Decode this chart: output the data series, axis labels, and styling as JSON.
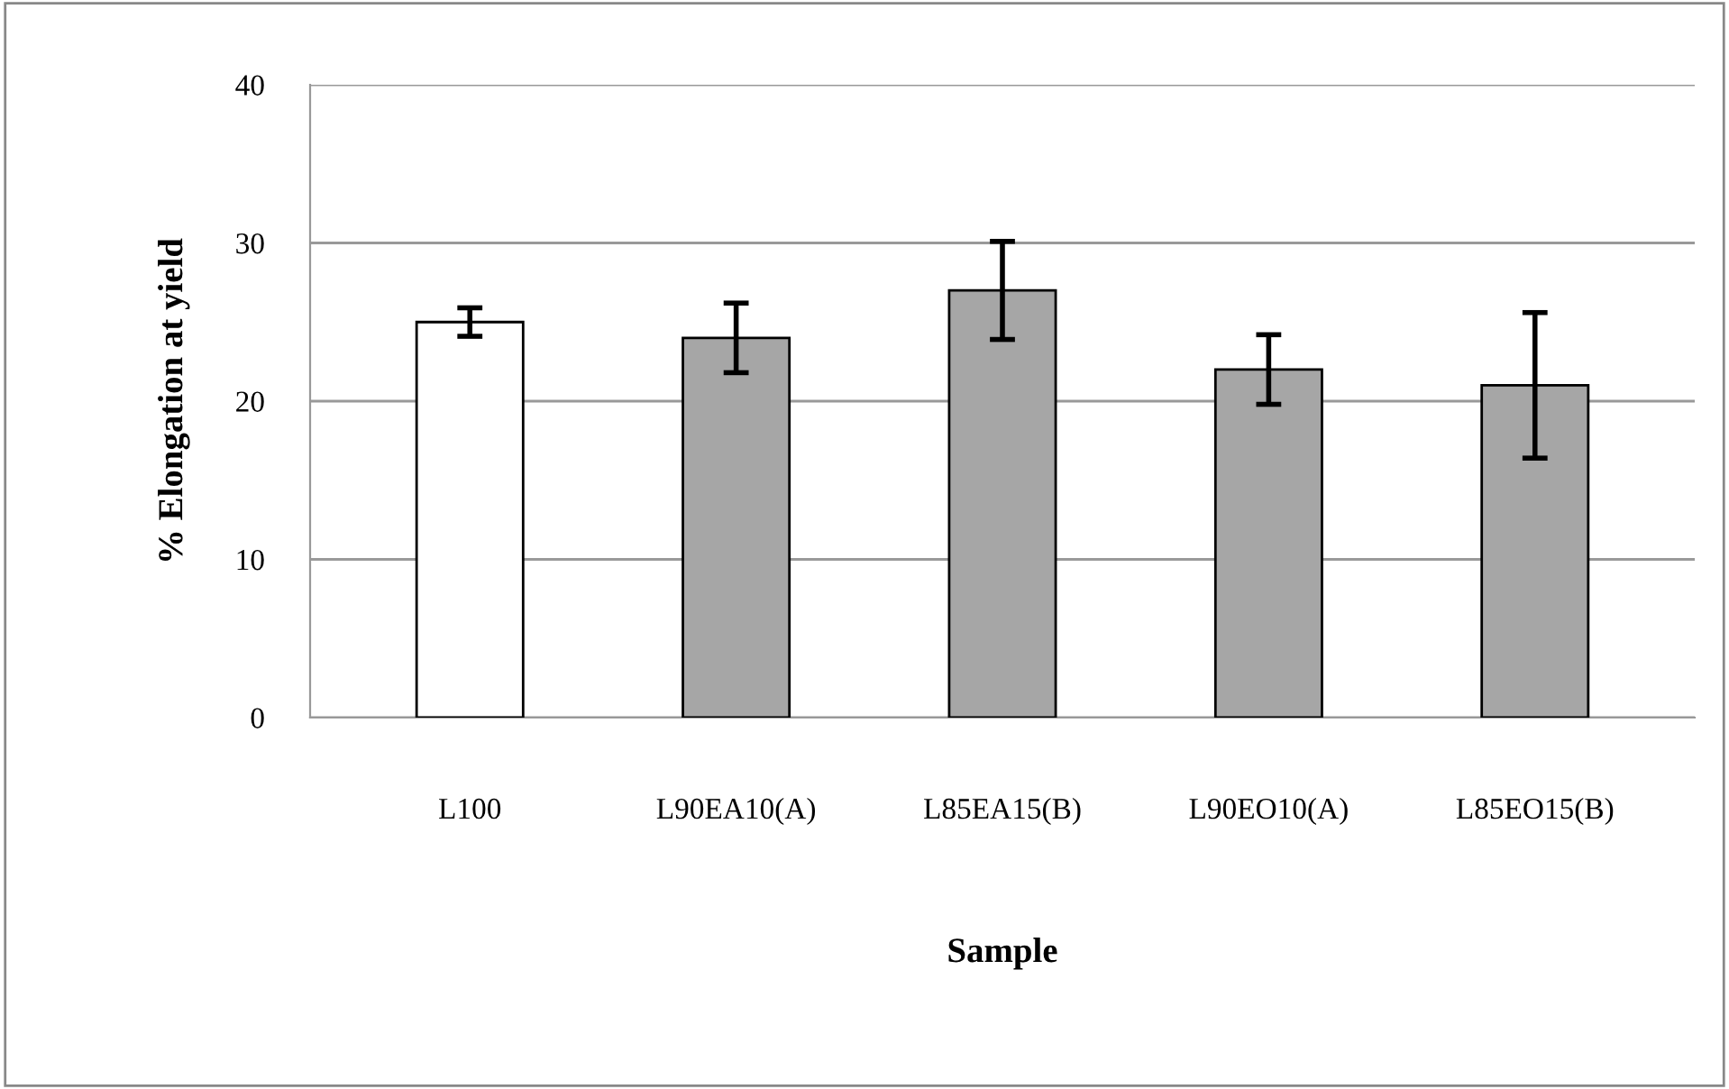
{
  "chart_data": {
    "type": "bar",
    "xlabel": "Sample",
    "ylabel": "% Elongation at yield",
    "categories": [
      "L100",
      "L90EA10(A)",
      "L85EA15(B)",
      "L90EO10(A)",
      "L85EO15(B)"
    ],
    "values": [
      25,
      24,
      27,
      22,
      21
    ],
    "colors": [
      "#ffffff",
      "#a6a6a6",
      "#a6a6a6",
      "#a6a6a6",
      "#a6a6a6"
    ],
    "errors": [
      0.9,
      2.2,
      3.1,
      2.2,
      4.6
    ],
    "ylim": [
      0,
      40
    ],
    "yticks": [
      0,
      10,
      20,
      30,
      40
    ],
    "grid": "y",
    "legend": false
  }
}
